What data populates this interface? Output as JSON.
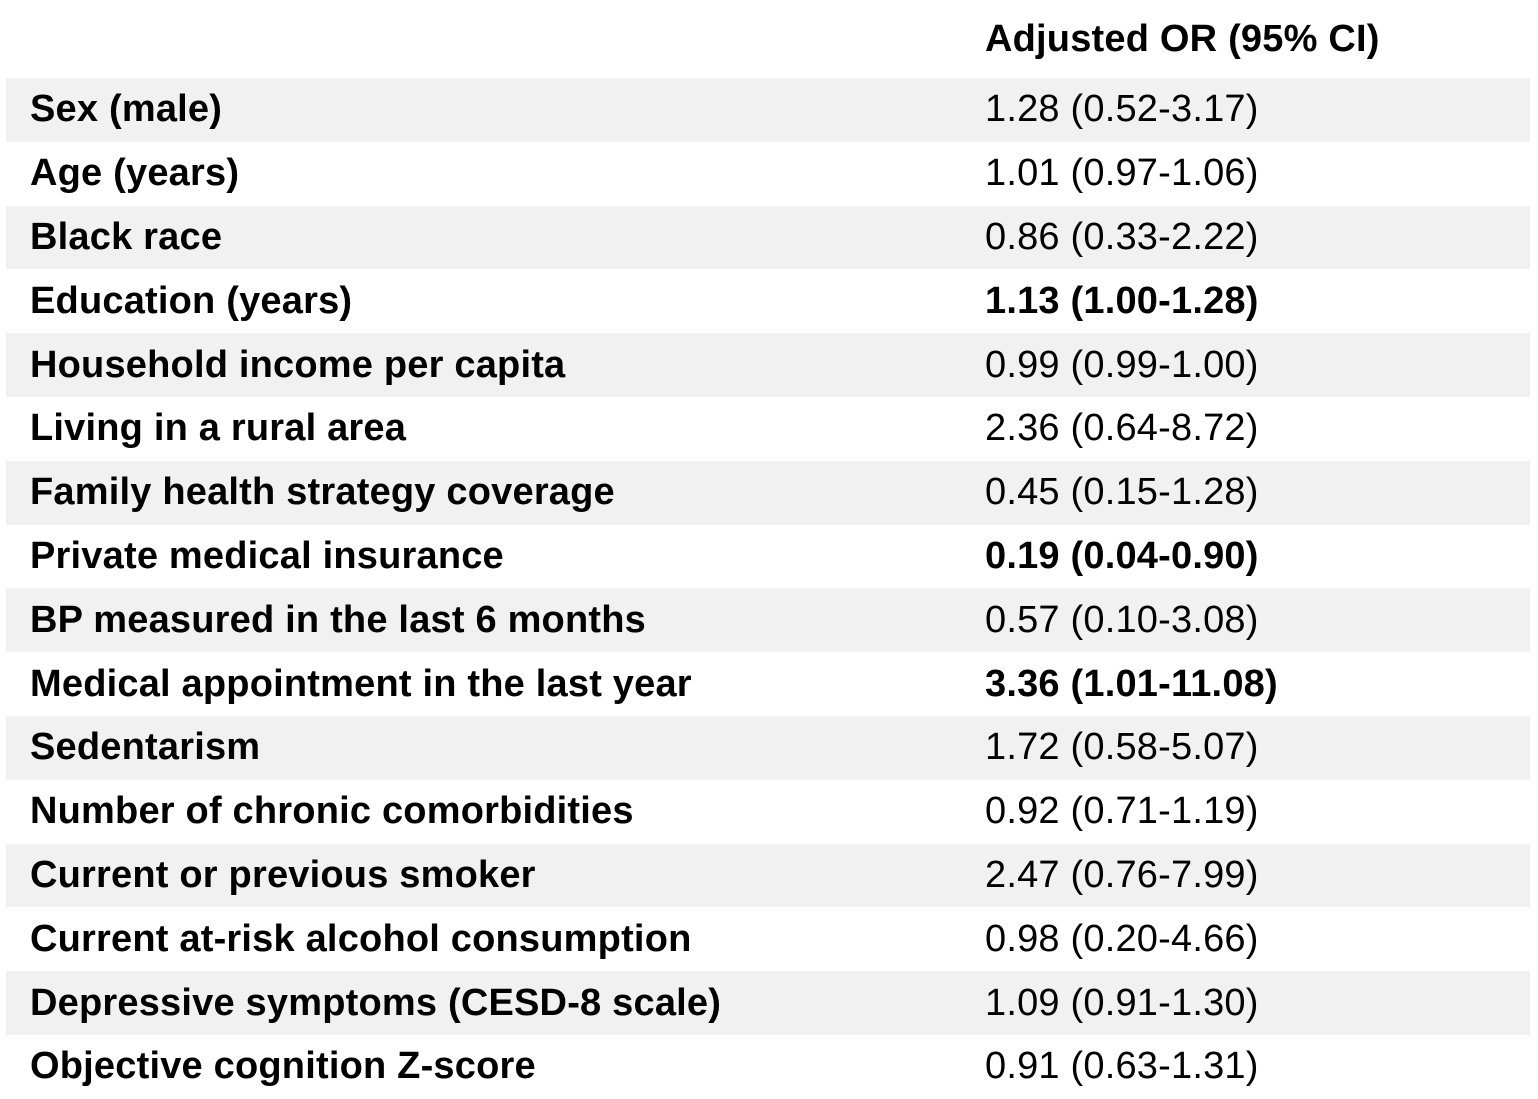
{
  "table": {
    "header": {
      "variable_label": "",
      "value_label": "Adjusted OR (95% CI)"
    },
    "rows": [
      {
        "label": "Sex (male)",
        "value": "1.28 (0.52-3.17)",
        "bold": false
      },
      {
        "label": "Age (years)",
        "value": "1.01 (0.97-1.06)",
        "bold": false
      },
      {
        "label": "Black race",
        "value": "0.86 (0.33-2.22)",
        "bold": false
      },
      {
        "label": "Education (years)",
        "value": "1.13 (1.00-1.28)",
        "bold": true
      },
      {
        "label": "Household income per capita",
        "value": "0.99 (0.99-1.00)",
        "bold": false
      },
      {
        "label": "Living in a rural area",
        "value": "2.36 (0.64-8.72)",
        "bold": false
      },
      {
        "label": "Family health strategy coverage",
        "value": "0.45 (0.15-1.28)",
        "bold": false
      },
      {
        "label": "Private medical insurance",
        "value": "0.19 (0.04-0.90)",
        "bold": true
      },
      {
        "label": "BP measured in the last 6 months",
        "value": "0.57 (0.10-3.08)",
        "bold": false
      },
      {
        "label": "Medical appointment in the last year",
        "value": "3.36 (1.01-11.08)",
        "bold": true
      },
      {
        "label": "Sedentarism",
        "value": "1.72 (0.58-5.07)",
        "bold": false
      },
      {
        "label": "Number of chronic comorbidities",
        "value": "0.92 (0.71-1.19)",
        "bold": false
      },
      {
        "label": "Current or previous smoker",
        "value": "2.47 (0.76-7.99)",
        "bold": false
      },
      {
        "label": "Current at-risk alcohol consumption",
        "value": "0.98 (0.20-4.66)",
        "bold": false
      },
      {
        "label": "Depressive symptoms (CESD-8 scale)",
        "value": "1.09 (0.91-1.30)",
        "bold": false
      },
      {
        "label": "Objective cognition Z-score",
        "value": "0.91 (0.63-1.31)",
        "bold": false
      }
    ],
    "stripe_start_index": 0
  },
  "colors": {
    "stripe": "#f1f1f1",
    "background": "#ffffff",
    "text": "#000000"
  }
}
